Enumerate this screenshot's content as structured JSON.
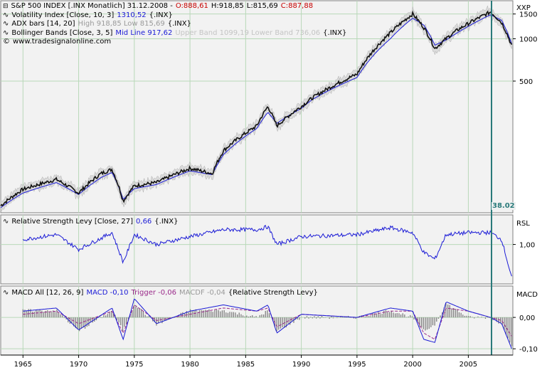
{
  "panels": {
    "price": {
      "line1": {
        "symbol": "S&P 500 INDEX [.INX  Monatlich] 31.12.2008 -",
        "open": "O:888,61",
        "high": "H:918,85",
        "low": "L:815,69",
        "close": "C:887,88"
      },
      "line2": {
        "label": "Volatility Index [Close, 10, 3]",
        "value": "1310,52",
        "suffix": "{.INX}"
      },
      "line3": {
        "label": "ADX bars [14, 20]",
        "value": "High 918,85 Low 815,69",
        "suffix": "{.INX}"
      },
      "line4": {
        "label": "Bollinger Bands [Close, 3, 5]",
        "mid": "Mid Line 917,62",
        "bands": "Upper Band 1099,19 Lower Band 736,06",
        "suffix": "{.INX}"
      },
      "line5": {
        "label": "www.tradesignalonline.com"
      },
      "axis_title": "XXP",
      "y_ticks": [
        "1500",
        "1000",
        "500"
      ],
      "cursor_label": "38.02"
    },
    "rsl": {
      "label": "Relative Strength Levy [Close, 27]",
      "value": "0,66",
      "suffix": "{.INX}",
      "axis_title": "RSL",
      "y_ticks": [
        "1,00"
      ]
    },
    "macd": {
      "label": "MACD All [12, 26, 9]",
      "macd": "MACD -0,10",
      "trigger": "Trigger -0,06",
      "macdf": "MACDF -0,04",
      "suffix": "{Relative Strength Levy}",
      "axis_title": "MACD",
      "y_ticks": [
        "0,00",
        "-0,10"
      ]
    }
  },
  "x_axis": {
    "years": [
      "1965",
      "1970",
      "1975",
      "1980",
      "1985",
      "1990",
      "1995",
      "2000",
      "2005"
    ]
  },
  "chart_data": [
    {
      "type": "line",
      "title": "S&P 500 INDEX [.INX  Monatlich] 31.12.2008",
      "ylabel": "XXP",
      "yscale": "log",
      "x": [
        1963,
        1965,
        1968,
        1970,
        1972,
        1973,
        1974,
        1975,
        1977,
        1980,
        1982,
        1983,
        1986,
        1987,
        1987.8,
        1990,
        1991,
        1995,
        1998,
        2000,
        2001,
        2002,
        2003,
        2004,
        2007,
        2008,
        2008.9
      ],
      "series": [
        {
          "name": "Close",
          "values": [
            65,
            85,
            100,
            80,
            110,
            118,
            70,
            90,
            95,
            120,
            110,
            160,
            240,
            330,
            240,
            330,
            380,
            560,
            1100,
            1500,
            1200,
            850,
            1000,
            1150,
            1550,
            1300,
            890
          ]
        },
        {
          "name": "Mid Line",
          "values": [
            63,
            80,
            95,
            78,
            103,
            112,
            72,
            86,
            92,
            115,
            108,
            150,
            230,
            300,
            250,
            320,
            370,
            530,
            1000,
            1400,
            1250,
            900,
            980,
            1100,
            1480,
            1350,
            918
          ]
        }
      ],
      "ylim": [
        60,
        1800
      ]
    },
    {
      "type": "line",
      "title": "Relative Strength Levy [Close, 27]",
      "ylabel": "RSL",
      "x": [
        1965,
        1968,
        1970,
        1973,
        1974,
        1975,
        1977,
        1980,
        1983,
        1986,
        1987,
        1987.8,
        1990,
        1995,
        1998,
        2000,
        2001,
        2002,
        2003,
        2005,
        2007,
        2008,
        2008.9
      ],
      "series": [
        {
          "name": "Relative Strength Levy",
          "values": [
            1.05,
            1.1,
            0.95,
            1.12,
            0.82,
            1.1,
            1.0,
            1.08,
            1.15,
            1.15,
            1.18,
            1.0,
            1.08,
            1.1,
            1.17,
            1.12,
            0.92,
            0.85,
            1.1,
            1.12,
            1.12,
            1.05,
            0.66
          ]
        }
      ],
      "ylim": [
        0.6,
        1.3
      ]
    },
    {
      "type": "bar",
      "title": "MACD All [12, 26, 9]",
      "ylabel": "MACD",
      "x": [
        1965,
        1968,
        1970,
        1973,
        1974,
        1975,
        1977,
        1980,
        1983,
        1986,
        1987,
        1987.8,
        1990,
        1995,
        1998,
        2000,
        2001,
        2002,
        2003,
        2005,
        2007,
        2008,
        2008.9
      ],
      "series": [
        {
          "name": "MACD",
          "values": [
            0.02,
            0.03,
            -0.04,
            0.03,
            -0.07,
            0.06,
            -0.02,
            0.02,
            0.04,
            0.02,
            0.04,
            -0.05,
            0.01,
            0.0,
            0.03,
            0.02,
            -0.07,
            -0.08,
            0.05,
            0.02,
            0.0,
            -0.02,
            -0.1
          ]
        },
        {
          "name": "Trigger",
          "values": [
            0.01,
            0.02,
            -0.02,
            0.02,
            -0.05,
            0.04,
            -0.01,
            0.01,
            0.03,
            0.02,
            0.03,
            -0.03,
            0.01,
            0.0,
            0.02,
            0.02,
            -0.05,
            -0.07,
            0.03,
            0.02,
            0.0,
            -0.01,
            -0.06
          ]
        }
      ],
      "ylim": [
        -0.12,
        0.1
      ]
    }
  ],
  "colors": {
    "price": "#111111",
    "band": "#c8c8c8",
    "mid": "#1a1ad6",
    "grid": "#b8d8b8",
    "cursor": "#2a7a7a",
    "panel_bg": "#f2f2f2"
  }
}
